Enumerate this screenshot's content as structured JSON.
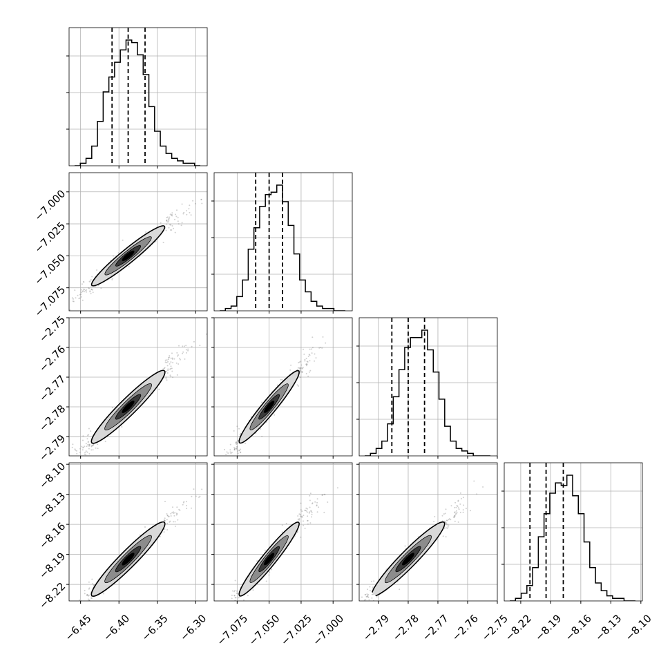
{
  "chart_data": {
    "type": "corner",
    "parameters": [
      {
        "range": [
          -6.465,
          -6.285
        ],
        "ticks": [
          "−6.45",
          "−6.40",
          "−6.35",
          "−6.30"
        ],
        "tick_values": [
          -6.45,
          -6.4,
          -6.35,
          -6.3
        ],
        "quantiles": [
          -6.409,
          -6.388,
          -6.366
        ]
      },
      {
        "range": [
          -7.093,
          -6.985
        ],
        "ticks": [
          "−7.075",
          "−7.050",
          "−7.025",
          "−7.000"
        ],
        "tick_values": [
          -7.075,
          -7.05,
          -7.025,
          -7.0
        ],
        "quantiles": [
          -7.0605,
          -7.05,
          -7.0395
        ]
      },
      {
        "range": [
          -2.7965,
          -2.75
        ],
        "ticks": [
          "−2.79",
          "−2.78",
          "−2.77",
          "−2.76",
          "−2.75"
        ],
        "tick_values": [
          -2.79,
          -2.78,
          -2.77,
          -2.76,
          -2.75
        ],
        "quantiles": [
          -2.7855,
          -2.78,
          -2.7745
        ]
      },
      {
        "range": [
          -8.2365,
          -8.0985
        ],
        "ticks": [
          "−8.22",
          "−8.19",
          "−8.16",
          "−8.13",
          "−8.10"
        ],
        "tick_values": [
          -8.22,
          -8.19,
          -8.16,
          -8.13,
          -8.1
        ],
        "quantiles": [
          -8.2108,
          -8.1947,
          -8.1775
        ]
      }
    ],
    "histograms": [
      [
        0,
        1,
        3,
        8,
        18,
        30,
        36,
        42,
        47,
        51,
        50,
        45,
        37,
        24,
        14,
        8,
        5,
        3,
        2,
        1,
        1,
        0
      ],
      [
        0,
        1,
        2,
        6,
        13,
        26,
        35,
        44,
        49,
        50,
        53,
        46,
        36,
        24,
        13,
        8,
        4,
        2,
        1,
        1,
        0,
        0
      ],
      [
        0,
        1,
        3,
        6,
        13,
        24,
        35,
        44,
        48,
        48,
        51,
        43,
        34,
        23,
        12,
        6,
        3,
        2,
        1,
        0,
        0,
        0
      ],
      [
        0,
        1,
        3,
        6,
        13,
        25,
        34,
        42,
        46,
        45,
        49,
        41,
        34,
        23,
        13,
        7,
        4,
        2,
        1,
        1,
        0,
        0
      ]
    ],
    "correlation": 0.97,
    "grid": true
  }
}
